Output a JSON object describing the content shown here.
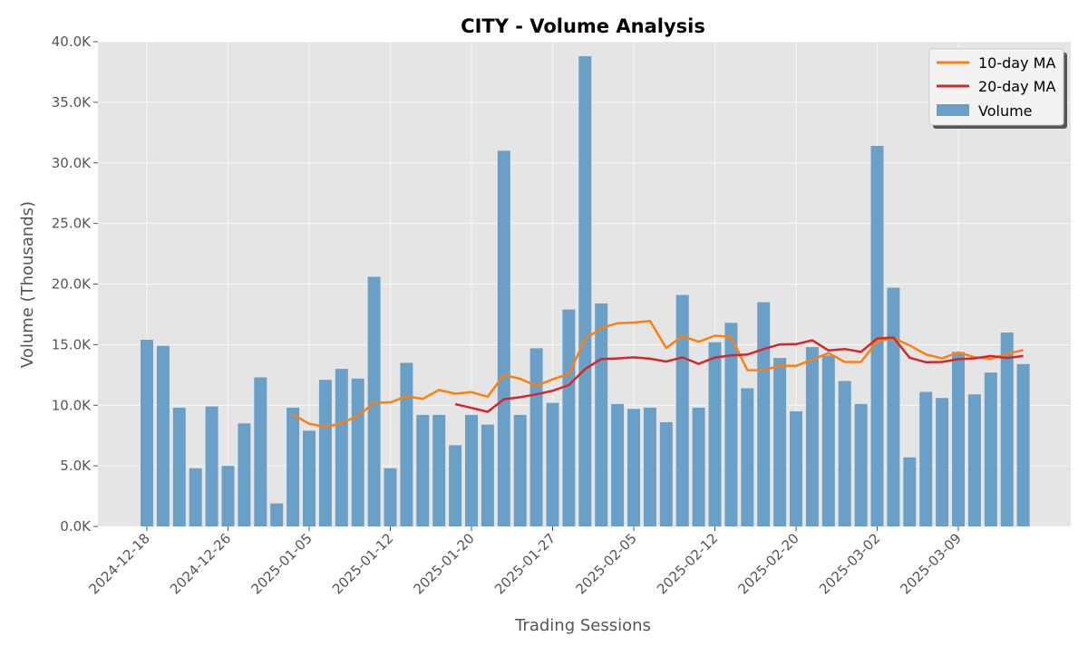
{
  "chart_data": {
    "type": "bar",
    "title": "CITY - Volume Analysis",
    "xlabel": "Trading Sessions",
    "ylabel": "Volume (Thousands)",
    "ylim": [
      0,
      40000
    ],
    "yticks": [
      0,
      5000,
      10000,
      15000,
      20000,
      25000,
      30000,
      35000,
      40000
    ],
    "ytick_labels": [
      "0.0K",
      "5.0K",
      "10.0K",
      "15.0K",
      "20.0K",
      "25.0K",
      "30.0K",
      "35.0K",
      "40.0K"
    ],
    "xtick_labels": [
      "2024-12-18",
      "2024-12-26",
      "2025-01-05",
      "2025-01-12",
      "2025-01-20",
      "2025-01-27",
      "2025-02-05",
      "2025-02-12",
      "2025-02-20",
      "2025-03-02",
      "2025-03-09"
    ],
    "grid": true,
    "legend_position": "top-right",
    "colors": {
      "volume": "#6aa0c8",
      "ma10": "#ff7f0e",
      "ma20": "#d62728",
      "plot_bg": "#e5e5e5"
    },
    "series": [
      {
        "name": "Volume",
        "type": "bar",
        "values": [
          15400,
          14900,
          9800,
          4800,
          9900,
          5000,
          8500,
          12300,
          1900,
          9800,
          7900,
          12100,
          13000,
          12200,
          20600,
          4800,
          13500,
          9200,
          9200,
          6700,
          9200,
          8400,
          31000,
          9200,
          14700,
          10200,
          17900,
          38800,
          18400,
          10100,
          9700,
          9800,
          8600,
          19100,
          9800,
          15200,
          16800,
          11400,
          18500,
          13900,
          9500,
          14800,
          14100,
          12000,
          10100,
          31400,
          19700,
          5700,
          11100,
          10600,
          14400,
          10900,
          12700,
          16000,
          13400
        ]
      },
      {
        "name": "10-day MA",
        "type": "line",
        "values": [
          null,
          null,
          null,
          null,
          null,
          null,
          null,
          null,
          null,
          9230,
          8480,
          8200,
          8520,
          9130,
          10200,
          10240,
          10740,
          10530,
          11260,
          10950,
          11080,
          10710,
          12490,
          12190,
          11600,
          12140,
          12580,
          15450,
          16370,
          16770,
          16820,
          16960,
          14720,
          15710,
          15240,
          15740,
          15630,
          12900,
          12890,
          13270,
          13250,
          13760,
          14310,
          13570,
          13570,
          15280,
          15550,
          14940,
          14200,
          13870,
          14360,
          13970,
          13830,
          14230,
          14560
        ]
      },
      {
        "name": "20-day MA",
        "type": "line",
        "values": [
          null,
          null,
          null,
          null,
          null,
          null,
          null,
          null,
          null,
          null,
          null,
          null,
          null,
          null,
          null,
          null,
          null,
          null,
          null,
          10090,
          9780,
          9460,
          10500,
          10660,
          10900,
          11190,
          11660,
          12990,
          13820,
          13860,
          13950,
          13840,
          13610,
          13950,
          13410,
          13940,
          14110,
          14180,
          14630,
          15020,
          15040,
          15360,
          14520,
          14640,
          14400,
          15510,
          15590,
          13920,
          13550,
          13570,
          13800,
          13870,
          14060,
          13900,
          14060
        ]
      }
    ]
  }
}
